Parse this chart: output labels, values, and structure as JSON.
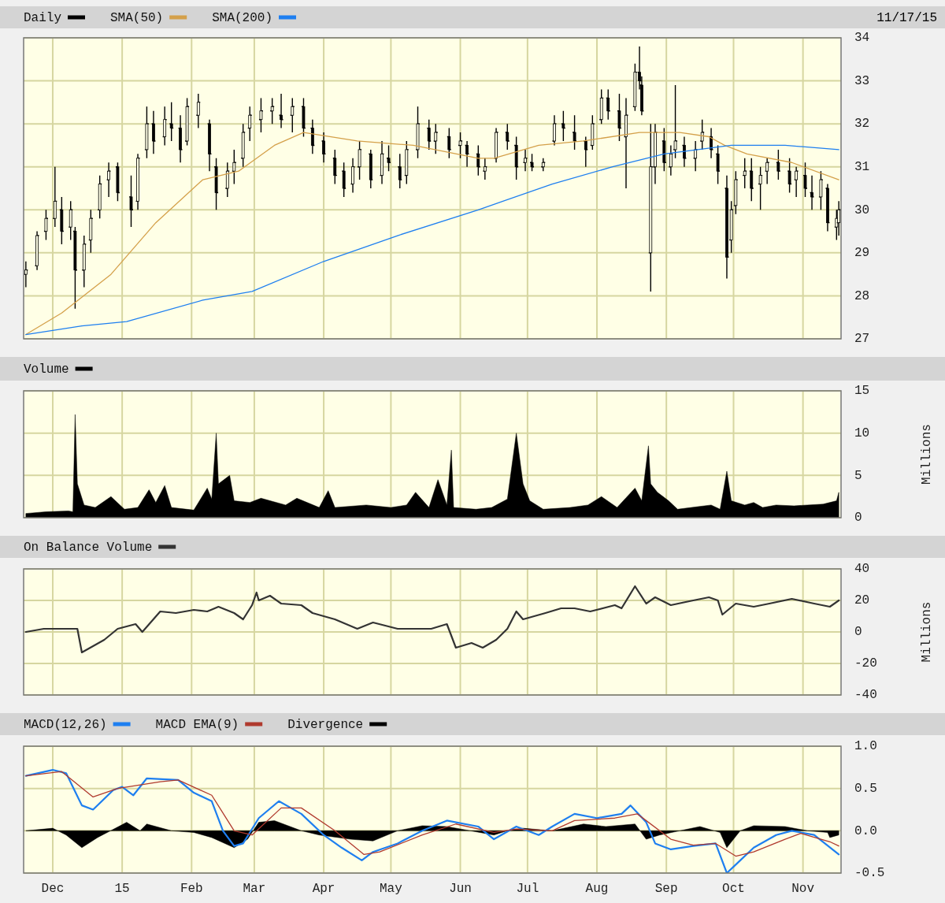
{
  "chart_data": [
    {
      "type": "candlestick",
      "legend": "top",
      "grid": true,
      "tick_labels": "y",
      "annotations": [
        "11/17/15"
      ],
      "xlim": [
        "2014-11-18",
        "2015-11-18"
      ],
      "xticks": [
        {
          "value": "2014-12-01",
          "label": null
        },
        {
          "value": "2015-01-01",
          "label": null
        },
        {
          "value": "2015-02-01",
          "label": null
        },
        {
          "value": "2015-03-01",
          "label": null
        },
        {
          "value": "2015-04-01",
          "label": null
        },
        {
          "value": "2015-05-01",
          "label": null
        },
        {
          "value": "2015-06-01",
          "label": null
        },
        {
          "value": "2015-07-01",
          "label": null
        },
        {
          "value": "2015-08-01",
          "label": null
        },
        {
          "value": "2015-09-01",
          "label": null
        },
        {
          "value": "2015-10-01",
          "label": null
        },
        {
          "value": "2015-11-01",
          "label": null
        }
      ],
      "ylim": [
        27,
        34
      ],
      "yticks": [
        27,
        28,
        29,
        30,
        31,
        32,
        33,
        34
      ],
      "series": [
        {
          "name": "Daily",
          "color": "#000000",
          "x": [
            "2014-11-19",
            "2014-11-24",
            "2014-11-28",
            "2014-12-02",
            "2014-12-05",
            "2014-12-09",
            "2014-12-11",
            "2014-12-15",
            "2014-12-18",
            "2014-12-22",
            "2014-12-26",
            "2014-12-30",
            "2015-01-05",
            "2015-01-08",
            "2015-01-12",
            "2015-01-15",
            "2015-01-20",
            "2015-01-23",
            "2015-01-27",
            "2015-01-30",
            "2015-02-04",
            "2015-02-09",
            "2015-02-12",
            "2015-02-17",
            "2015-02-20",
            "2015-02-24",
            "2015-02-27",
            "2015-03-04",
            "2015-03-09",
            "2015-03-13",
            "2015-03-18",
            "2015-03-23",
            "2015-03-27",
            "2015-04-01",
            "2015-04-06",
            "2015-04-10",
            "2015-04-14",
            "2015-04-17",
            "2015-04-22",
            "2015-04-27",
            "2015-04-30",
            "2015-05-05",
            "2015-05-08",
            "2015-05-13",
            "2015-05-18",
            "2015-05-21",
            "2015-05-27",
            "2015-06-01",
            "2015-06-04",
            "2015-06-09",
            "2015-06-12",
            "2015-06-17",
            "2015-06-22",
            "2015-06-26",
            "2015-06-30",
            "2015-07-03",
            "2015-07-08",
            "2015-07-13",
            "2015-07-17",
            "2015-07-22",
            "2015-07-27",
            "2015-07-30",
            "2015-08-03",
            "2015-08-06",
            "2015-08-11",
            "2015-08-14",
            "2015-08-18",
            "2015-08-20",
            "2015-08-21",
            "2015-08-25",
            "2015-08-27",
            "2015-08-31",
            "2015-09-03",
            "2015-09-05",
            "2015-09-09",
            "2015-09-14",
            "2015-09-17",
            "2015-09-21",
            "2015-09-24",
            "2015-09-28",
            "2015-09-30",
            "2015-10-02",
            "2015-10-06",
            "2015-10-09",
            "2015-10-13",
            "2015-10-16",
            "2015-10-21",
            "2015-10-26",
            "2015-10-29",
            "2015-11-02",
            "2015-11-05",
            "2015-11-09",
            "2015-11-12",
            "2015-11-16",
            "2015-11-17"
          ],
          "ohlc": [
            [
              28.5,
              28.8,
              28.2,
              28.6
            ],
            [
              28.7,
              29.5,
              28.6,
              29.4
            ],
            [
              29.5,
              30.0,
              29.3,
              29.8
            ],
            [
              29.8,
              31.0,
              29.6,
              30.2
            ],
            [
              30.0,
              30.3,
              29.2,
              29.5
            ],
            [
              29.6,
              30.2,
              29.3,
              30.0
            ],
            [
              29.5,
              29.6,
              27.7,
              28.6
            ],
            [
              28.6,
              29.4,
              28.2,
              29.2
            ],
            [
              29.3,
              30.0,
              29.0,
              29.8
            ],
            [
              30.0,
              30.8,
              29.8,
              30.6
            ],
            [
              30.7,
              31.1,
              30.3,
              30.9
            ],
            [
              31.0,
              31.1,
              30.2,
              30.4
            ],
            [
              30.3,
              30.8,
              29.6,
              30.0
            ],
            [
              30.2,
              31.3,
              30.0,
              31.2
            ],
            [
              31.4,
              32.4,
              31.2,
              32.0
            ],
            [
              32.0,
              32.3,
              31.3,
              31.6
            ],
            [
              31.7,
              32.4,
              31.5,
              32.1
            ],
            [
              32.0,
              32.5,
              31.6,
              31.9
            ],
            [
              31.9,
              32.2,
              31.1,
              31.4
            ],
            [
              31.6,
              32.6,
              31.5,
              32.4
            ],
            [
              32.2,
              32.7,
              31.9,
              32.5
            ],
            [
              32.0,
              32.1,
              30.9,
              31.3
            ],
            [
              31.0,
              31.2,
              30.0,
              30.4
            ],
            [
              30.5,
              31.1,
              30.3,
              30.9
            ],
            [
              30.9,
              31.4,
              30.6,
              31.1
            ],
            [
              31.2,
              32.0,
              31.0,
              31.8
            ],
            [
              31.9,
              32.4,
              31.6,
              32.2
            ],
            [
              32.1,
              32.6,
              31.8,
              32.3
            ],
            [
              32.3,
              32.6,
              32.0,
              32.4
            ],
            [
              32.2,
              32.7,
              31.9,
              32.1
            ],
            [
              32.2,
              32.6,
              31.8,
              32.4
            ],
            [
              32.4,
              32.6,
              31.7,
              31.9
            ],
            [
              31.9,
              32.1,
              31.3,
              31.5
            ],
            [
              31.6,
              31.8,
              31.1,
              31.3
            ],
            [
              31.2,
              31.4,
              30.6,
              30.8
            ],
            [
              30.9,
              31.1,
              30.3,
              30.5
            ],
            [
              30.6,
              31.2,
              30.4,
              31.0
            ],
            [
              31.0,
              31.6,
              30.7,
              31.4
            ],
            [
              31.3,
              31.4,
              30.5,
              30.7
            ],
            [
              30.8,
              31.6,
              30.6,
              31.3
            ],
            [
              31.2,
              31.5,
              30.9,
              31.1
            ],
            [
              31.0,
              31.3,
              30.5,
              30.7
            ],
            [
              30.8,
              31.6,
              30.6,
              31.4
            ],
            [
              31.4,
              32.4,
              31.2,
              32.0
            ],
            [
              31.9,
              32.1,
              31.4,
              31.6
            ],
            [
              31.6,
              32.0,
              31.3,
              31.8
            ],
            [
              31.7,
              31.9,
              31.2,
              31.4
            ],
            [
              31.5,
              31.8,
              31.2,
              31.6
            ],
            [
              31.5,
              31.6,
              31.0,
              31.3
            ],
            [
              31.3,
              31.5,
              30.8,
              31.0
            ],
            [
              30.9,
              31.2,
              30.7,
              31.0
            ],
            [
              31.2,
              31.9,
              31.1,
              31.8
            ],
            [
              31.8,
              32.0,
              31.4,
              31.6
            ],
            [
              31.5,
              31.7,
              30.7,
              31.0
            ],
            [
              31.1,
              31.4,
              30.9,
              31.2
            ],
            [
              31.1,
              31.3,
              30.9,
              31.0
            ],
            [
              31.0,
              31.2,
              30.9,
              31.1
            ],
            [
              31.6,
              32.2,
              31.5,
              32.0
            ],
            [
              32.0,
              32.3,
              31.6,
              31.9
            ],
            [
              31.8,
              32.2,
              31.4,
              31.6
            ],
            [
              31.6,
              31.7,
              31.0,
              31.4
            ],
            [
              31.5,
              32.2,
              31.4,
              32.0
            ],
            [
              32.1,
              32.8,
              32.0,
              32.6
            ],
            [
              32.6,
              32.8,
              32.1,
              32.3
            ],
            [
              32.3,
              32.7,
              31.6,
              31.9
            ],
            [
              31.7,
              32.6,
              30.5,
              32.2
            ],
            [
              32.4,
              33.4,
              32.3,
              33.2
            ],
            [
              33.2,
              33.8,
              32.8,
              33.0
            ],
            [
              32.9,
              33.1,
              32.2,
              32.3
            ],
            [
              29.0,
              32.0,
              28.1,
              31.0
            ],
            [
              31.0,
              32.0,
              30.6,
              31.8
            ],
            [
              31.6,
              31.9,
              30.9,
              31.1
            ],
            [
              31.0,
              31.5,
              30.8,
              31.3
            ],
            [
              31.4,
              32.9,
              31.2,
              31.6
            ],
            [
              31.5,
              31.7,
              31.0,
              31.2
            ],
            [
              31.2,
              31.6,
              30.9,
              31.4
            ],
            [
              31.6,
              32.1,
              31.4,
              31.8
            ],
            [
              31.7,
              31.9,
              31.2,
              31.4
            ],
            [
              31.3,
              31.5,
              30.6,
              30.9
            ],
            [
              30.5,
              30.8,
              28.4,
              28.9
            ],
            [
              29.3,
              30.2,
              29.0,
              30.0
            ],
            [
              30.1,
              30.9,
              29.9,
              30.7
            ],
            [
              30.8,
              31.2,
              30.5,
              30.9
            ],
            [
              30.9,
              31.2,
              30.2,
              30.5
            ],
            [
              30.6,
              31.0,
              30.0,
              30.8
            ],
            [
              30.9,
              31.2,
              30.6,
              31.1
            ],
            [
              31.1,
              31.4,
              30.7,
              30.9
            ],
            [
              30.9,
              31.2,
              30.4,
              30.6
            ],
            [
              30.7,
              31.0,
              30.3,
              30.9
            ],
            [
              30.8,
              31.1,
              30.3,
              30.5
            ],
            [
              30.4,
              30.8,
              30.0,
              30.3
            ],
            [
              30.3,
              30.9,
              30.0,
              30.7
            ],
            [
              30.5,
              30.6,
              29.5,
              29.7
            ],
            [
              29.6,
              30.0,
              29.3,
              29.8
            ],
            [
              29.7,
              30.2,
              29.4,
              30.0
            ]
          ]
        },
        {
          "name": "SMA(50)",
          "type": "line",
          "color": "#d4a04a",
          "x": [
            "2014-11-19",
            "2014-12-05",
            "2014-12-27",
            "2015-01-16",
            "2015-02-06",
            "2015-02-22",
            "2015-03-10",
            "2015-03-23",
            "2015-04-16",
            "2015-05-11",
            "2015-06-09",
            "2015-06-16",
            "2015-07-06",
            "2015-07-26",
            "2015-08-20",
            "2015-09-07",
            "2015-09-20",
            "2015-09-27",
            "2015-10-07",
            "2015-10-27",
            "2015-11-17"
          ],
          "values": [
            27.1,
            27.6,
            28.5,
            29.7,
            30.7,
            30.9,
            31.5,
            31.8,
            31.6,
            31.5,
            31.2,
            31.2,
            31.5,
            31.6,
            31.8,
            31.8,
            31.7,
            31.5,
            31.3,
            31.1,
            30.7
          ]
        },
        {
          "name": "SMA(200)",
          "type": "line",
          "color": "#1e7ff0",
          "x": [
            "2014-11-19",
            "2014-12-14",
            "2015-01-03",
            "2015-02-06",
            "2015-02-28",
            "2015-04-01",
            "2015-05-04",
            "2015-06-09",
            "2015-07-12",
            "2015-08-08",
            "2015-08-31",
            "2015-09-30",
            "2015-10-24",
            "2015-11-17"
          ],
          "values": [
            27.1,
            27.3,
            27.4,
            27.9,
            28.1,
            28.8,
            29.4,
            30.0,
            30.6,
            31.0,
            31.3,
            31.5,
            31.5,
            31.4
          ]
        }
      ]
    },
    {
      "type": "area",
      "legend": "top",
      "grid": true,
      "tick_labels": "y",
      "ylabel": "Millions",
      "xlim": [
        "2014-11-18",
        "2015-11-18"
      ],
      "xticks": [
        {
          "value": "2014-12-01",
          "label": null
        },
        {
          "value": "2015-01-01",
          "label": null
        },
        {
          "value": "2015-02-01",
          "label": null
        },
        {
          "value": "2015-03-01",
          "label": null
        },
        {
          "value": "2015-04-01",
          "label": null
        },
        {
          "value": "2015-05-01",
          "label": null
        },
        {
          "value": "2015-06-01",
          "label": null
        },
        {
          "value": "2015-07-01",
          "label": null
        },
        {
          "value": "2015-08-01",
          "label": null
        },
        {
          "value": "2015-09-01",
          "label": null
        },
        {
          "value": "2015-10-01",
          "label": null
        },
        {
          "value": "2015-11-01",
          "label": null
        }
      ],
      "ylim": [
        0,
        15
      ],
      "yticks": [
        0,
        5,
        10,
        15
      ],
      "series": [
        {
          "name": "Volume",
          "color": "#000000",
          "x": [
            "2014-11-19",
            "2014-11-28",
            "2014-12-08",
            "2014-12-10",
            "2014-12-11",
            "2014-12-12",
            "2014-12-15",
            "2014-12-20",
            "2014-12-27",
            "2015-01-02",
            "2015-01-08",
            "2015-01-13",
            "2015-01-16",
            "2015-01-20",
            "2015-01-23",
            "2015-02-02",
            "2015-02-08",
            "2015-02-10",
            "2015-02-12",
            "2015-02-13",
            "2015-02-18",
            "2015-02-20",
            "2015-02-27",
            "2015-03-04",
            "2015-03-15",
            "2015-03-20",
            "2015-03-30",
            "2015-04-03",
            "2015-04-06",
            "2015-04-20",
            "2015-05-01",
            "2015-05-08",
            "2015-05-12",
            "2015-05-18",
            "2015-05-22",
            "2015-05-26",
            "2015-05-28",
            "2015-05-29",
            "2015-06-08",
            "2015-06-15",
            "2015-06-22",
            "2015-06-26",
            "2015-06-29",
            "2015-07-02",
            "2015-07-08",
            "2015-07-20",
            "2015-07-28",
            "2015-08-03",
            "2015-08-10",
            "2015-08-18",
            "2015-08-21",
            "2015-08-24",
            "2015-08-25",
            "2015-08-28",
            "2015-09-02",
            "2015-09-06",
            "2015-09-15",
            "2015-09-21",
            "2015-09-25",
            "2015-09-28",
            "2015-09-30",
            "2015-10-06",
            "2015-10-10",
            "2015-10-14",
            "2015-10-20",
            "2015-10-28",
            "2015-11-03",
            "2015-11-10",
            "2015-11-16",
            "2015-11-17"
          ],
          "values": [
            0.5,
            0.7,
            0.8,
            0.7,
            12.2,
            4,
            1.5,
            1.2,
            2.5,
            1,
            1.2,
            3.3,
            1.8,
            3.8,
            1.2,
            0.9,
            3.5,
            2.2,
            10,
            4,
            5,
            2,
            1.8,
            2.3,
            1.5,
            2.3,
            1.2,
            3.2,
            1.2,
            1.5,
            1.2,
            1.5,
            3,
            1.2,
            4.5,
            1.5,
            8,
            1.2,
            1,
            1.2,
            2.2,
            10,
            4,
            2,
            1,
            1.2,
            1.5,
            2.5,
            1.2,
            3.5,
            2,
            8.5,
            4,
            3,
            2,
            1,
            1.3,
            1.5,
            1.0,
            5.5,
            2,
            1.5,
            1.8,
            1.2,
            1.5,
            1.4,
            1.5,
            1.6,
            2.0,
            3.0
          ]
        }
      ]
    },
    {
      "type": "line",
      "legend": "top",
      "grid": true,
      "tick_labels": "y",
      "ylabel": "Millions",
      "xlim": [
        "2014-11-18",
        "2015-11-18"
      ],
      "xticks": [
        {
          "value": "2014-12-01",
          "label": null
        },
        {
          "value": "2015-01-01",
          "label": null
        },
        {
          "value": "2015-02-01",
          "label": null
        },
        {
          "value": "2015-03-01",
          "label": null
        },
        {
          "value": "2015-04-01",
          "label": null
        },
        {
          "value": "2015-05-01",
          "label": null
        },
        {
          "value": "2015-06-01",
          "label": null
        },
        {
          "value": "2015-07-01",
          "label": null
        },
        {
          "value": "2015-08-01",
          "label": null
        },
        {
          "value": "2015-09-01",
          "label": null
        },
        {
          "value": "2015-10-01",
          "label": null
        },
        {
          "value": "2015-11-01",
          "label": null
        }
      ],
      "ylim": [
        -40,
        40
      ],
      "yticks": [
        -40,
        -20,
        0,
        20,
        40
      ],
      "series": [
        {
          "name": "On Balance Volume",
          "color": "#333333",
          "x": [
            "2014-11-19",
            "2014-11-27",
            "2014-12-12",
            "2014-12-14",
            "2014-12-24",
            "2014-12-30",
            "2015-01-07",
            "2015-01-10",
            "2015-01-18",
            "2015-01-25",
            "2015-02-02",
            "2015-02-08",
            "2015-02-13",
            "2015-02-20",
            "2015-02-24",
            "2015-02-28",
            "2015-03-02",
            "2015-03-03",
            "2015-03-08",
            "2015-03-13",
            "2015-03-22",
            "2015-03-27",
            "2015-04-06",
            "2015-04-16",
            "2015-04-23",
            "2015-05-04",
            "2015-05-19",
            "2015-05-26",
            "2015-05-30",
            "2015-06-06",
            "2015-06-11",
            "2015-06-17",
            "2015-06-22",
            "2015-06-26",
            "2015-06-29",
            "2015-07-09",
            "2015-07-16",
            "2015-07-22",
            "2015-07-29",
            "2015-08-09",
            "2015-08-12",
            "2015-08-18",
            "2015-08-23",
            "2015-08-27",
            "2015-09-03",
            "2015-09-13",
            "2015-09-20",
            "2015-09-24",
            "2015-09-26",
            "2015-10-02",
            "2015-10-10",
            "2015-10-17",
            "2015-10-27",
            "2015-11-06",
            "2015-11-13",
            "2015-11-17"
          ],
          "values": [
            0,
            2,
            2,
            -13,
            -5,
            2,
            5,
            0,
            13,
            12,
            14,
            13,
            16,
            12,
            8,
            17,
            25,
            20,
            23,
            18,
            17,
            12,
            8,
            2,
            6,
            2,
            2,
            5,
            -10,
            -7,
            -10,
            -5,
            2,
            13,
            8,
            12,
            15,
            15,
            13,
            17,
            15,
            29,
            18,
            22,
            17,
            20,
            22,
            20,
            11,
            18,
            16,
            18,
            21,
            18,
            16,
            20
          ]
        }
      ]
    },
    {
      "type": "line",
      "legend": "top",
      "grid": true,
      "xlim": [
        "2014-11-18",
        "2015-11-18"
      ],
      "xticks": [
        {
          "value": "2014-12-01",
          "label": "Dec"
        },
        {
          "value": "2015-01-01",
          "label": "15"
        },
        {
          "value": "2015-02-01",
          "label": "Feb"
        },
        {
          "value": "2015-03-01",
          "label": "Mar"
        },
        {
          "value": "2015-04-01",
          "label": "Apr"
        },
        {
          "value": "2015-05-01",
          "label": "May"
        },
        {
          "value": "2015-06-01",
          "label": "Jun"
        },
        {
          "value": "2015-07-01",
          "label": "Jul"
        },
        {
          "value": "2015-08-01",
          "label": "Aug"
        },
        {
          "value": "2015-09-01",
          "label": "Sep"
        },
        {
          "value": "2015-10-01",
          "label": "Oct"
        },
        {
          "value": "2015-11-01",
          "label": "Nov"
        }
      ],
      "ylim": [
        -0.5,
        1
      ],
      "yticks": [
        {
          "value": -0.5,
          "label": "-0.5"
        },
        {
          "value": 0,
          "label": "0.0"
        },
        {
          "value": 0.5,
          "label": "0.5"
        },
        {
          "value": 1,
          "label": "1.0"
        }
      ],
      "series": [
        {
          "name": "MACD(12,26)",
          "color": "#1e7ff0",
          "x": [
            "2014-11-19",
            "2014-12-01",
            "2014-12-07",
            "2014-12-14",
            "2014-12-19",
            "2014-12-28",
            "2015-01-01",
            "2015-01-06",
            "2015-01-12",
            "2015-01-26",
            "2015-02-02",
            "2015-02-10",
            "2015-02-15",
            "2015-02-20",
            "2015-02-24",
            "2015-03-03",
            "2015-03-12",
            "2015-03-22",
            "2015-04-01",
            "2015-04-09",
            "2015-04-18",
            "2015-04-23",
            "2015-05-04",
            "2015-05-15",
            "2015-05-26",
            "2015-06-09",
            "2015-06-16",
            "2015-06-26",
            "2015-07-06",
            "2015-07-12",
            "2015-07-22",
            "2015-08-01",
            "2015-08-12",
            "2015-08-16",
            "2015-08-23",
            "2015-08-27",
            "2015-09-03",
            "2015-09-13",
            "2015-09-23",
            "2015-09-28",
            "2015-10-04",
            "2015-10-10",
            "2015-10-20",
            "2015-10-27",
            "2015-11-06",
            "2015-11-17"
          ],
          "values": [
            0.65,
            0.72,
            0.68,
            0.3,
            0.25,
            0.48,
            0.52,
            0.42,
            0.62,
            0.6,
            0.45,
            0.35,
            0.0,
            -0.18,
            -0.15,
            0.15,
            0.35,
            0.2,
            -0.05,
            -0.2,
            -0.35,
            -0.25,
            -0.15,
            0.0,
            0.12,
            0.05,
            -0.1,
            0.05,
            -0.05,
            0.05,
            0.2,
            0.15,
            0.2,
            0.3,
            0.1,
            -0.15,
            -0.22,
            -0.18,
            -0.15,
            -0.5,
            -0.35,
            -0.2,
            -0.05,
            0.0,
            -0.05,
            -0.28
          ]
        },
        {
          "name": "MACD EMA(9)",
          "color": "#b03a2e",
          "x": [
            "2014-11-19",
            "2014-12-05",
            "2014-12-19",
            "2014-12-30",
            "2015-01-18",
            "2015-01-26",
            "2015-02-10",
            "2015-02-20",
            "2015-02-28",
            "2015-03-13",
            "2015-03-22",
            "2015-04-06",
            "2015-04-19",
            "2015-04-26",
            "2015-05-15",
            "2015-05-30",
            "2015-06-16",
            "2015-06-26",
            "2015-07-12",
            "2015-07-22",
            "2015-08-09",
            "2015-08-19",
            "2015-09-03",
            "2015-09-13",
            "2015-09-23",
            "2015-10-02",
            "2015-10-10",
            "2015-10-24",
            "2015-10-31",
            "2015-11-13",
            "2015-11-17"
          ],
          "values": [
            0.65,
            0.7,
            0.4,
            0.5,
            0.58,
            0.6,
            0.42,
            0.0,
            -0.05,
            0.27,
            0.27,
            0.0,
            -0.28,
            -0.25,
            -0.05,
            0.08,
            -0.02,
            0.02,
            0.0,
            0.12,
            0.15,
            0.2,
            -0.1,
            -0.17,
            -0.15,
            -0.3,
            -0.25,
            -0.1,
            -0.03,
            -0.13,
            -0.18
          ]
        },
        {
          "name": "Divergence",
          "type": "area",
          "color": "#000000",
          "x": [
            "2014-11-19",
            "2014-12-01",
            "2014-12-07",
            "2014-12-14",
            "2014-12-21",
            "2014-12-29",
            "2015-01-03",
            "2015-01-09",
            "2015-01-12",
            "2015-01-23",
            "2015-02-02",
            "2015-02-10",
            "2015-02-20",
            "2015-02-26",
            "2015-03-03",
            "2015-03-10",
            "2015-03-22",
            "2015-03-30",
            "2015-04-13",
            "2015-04-23",
            "2015-05-04",
            "2015-05-15",
            "2015-05-26",
            "2015-06-16",
            "2015-06-22",
            "2015-06-29",
            "2015-07-12",
            "2015-07-26",
            "2015-08-05",
            "2015-08-18",
            "2015-08-23",
            "2015-08-29",
            "2015-09-07",
            "2015-09-16",
            "2015-09-25",
            "2015-09-28",
            "2015-10-04",
            "2015-10-10",
            "2015-10-24",
            "2015-11-03",
            "2015-11-12",
            "2015-11-13",
            "2015-11-17"
          ],
          "values": [
            0,
            0.03,
            -0.05,
            -0.2,
            -0.08,
            0.03,
            0.1,
            0.0,
            0.08,
            0.0,
            -0.02,
            -0.08,
            -0.2,
            -0.1,
            0.1,
            0.12,
            0.0,
            -0.05,
            -0.1,
            -0.12,
            0.0,
            0.06,
            0.05,
            -0.05,
            0.0,
            0.03,
            0.0,
            0.08,
            0.05,
            0.08,
            -0.1,
            -0.05,
            0.0,
            0.05,
            -0.02,
            -0.2,
            0.0,
            0.06,
            0.05,
            0.0,
            -0.02,
            -0.08,
            -0.05
          ]
        }
      ]
    }
  ]
}
